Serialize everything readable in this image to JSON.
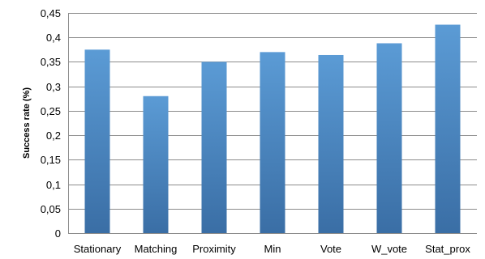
{
  "chart_data": {
    "type": "bar",
    "categories": [
      "Stationary",
      "Matching",
      "Proximity",
      "Min",
      "Vote",
      "W_vote",
      "Stat_prox"
    ],
    "values": [
      0.375,
      0.28,
      0.35,
      0.37,
      0.364,
      0.388,
      0.426
    ],
    "ylabel": "Success rate (%)",
    "xlabel": "",
    "ylim": [
      0,
      0.45
    ],
    "yticks": [
      0,
      0.05,
      0.1,
      0.15,
      0.2,
      0.25,
      0.3,
      0.35,
      0.4,
      0.45
    ],
    "ytick_labels": [
      "0",
      "0,05",
      "0,1",
      "0,15",
      "0,2",
      "0,25",
      "0,3",
      "0,35",
      "0,4",
      "0,45"
    ],
    "grid": true,
    "legend": "none",
    "colors": {
      "bar_top": "#5b9bd5",
      "bar_bottom": "#3a6ea5",
      "grid": "#8c8c8c"
    }
  }
}
